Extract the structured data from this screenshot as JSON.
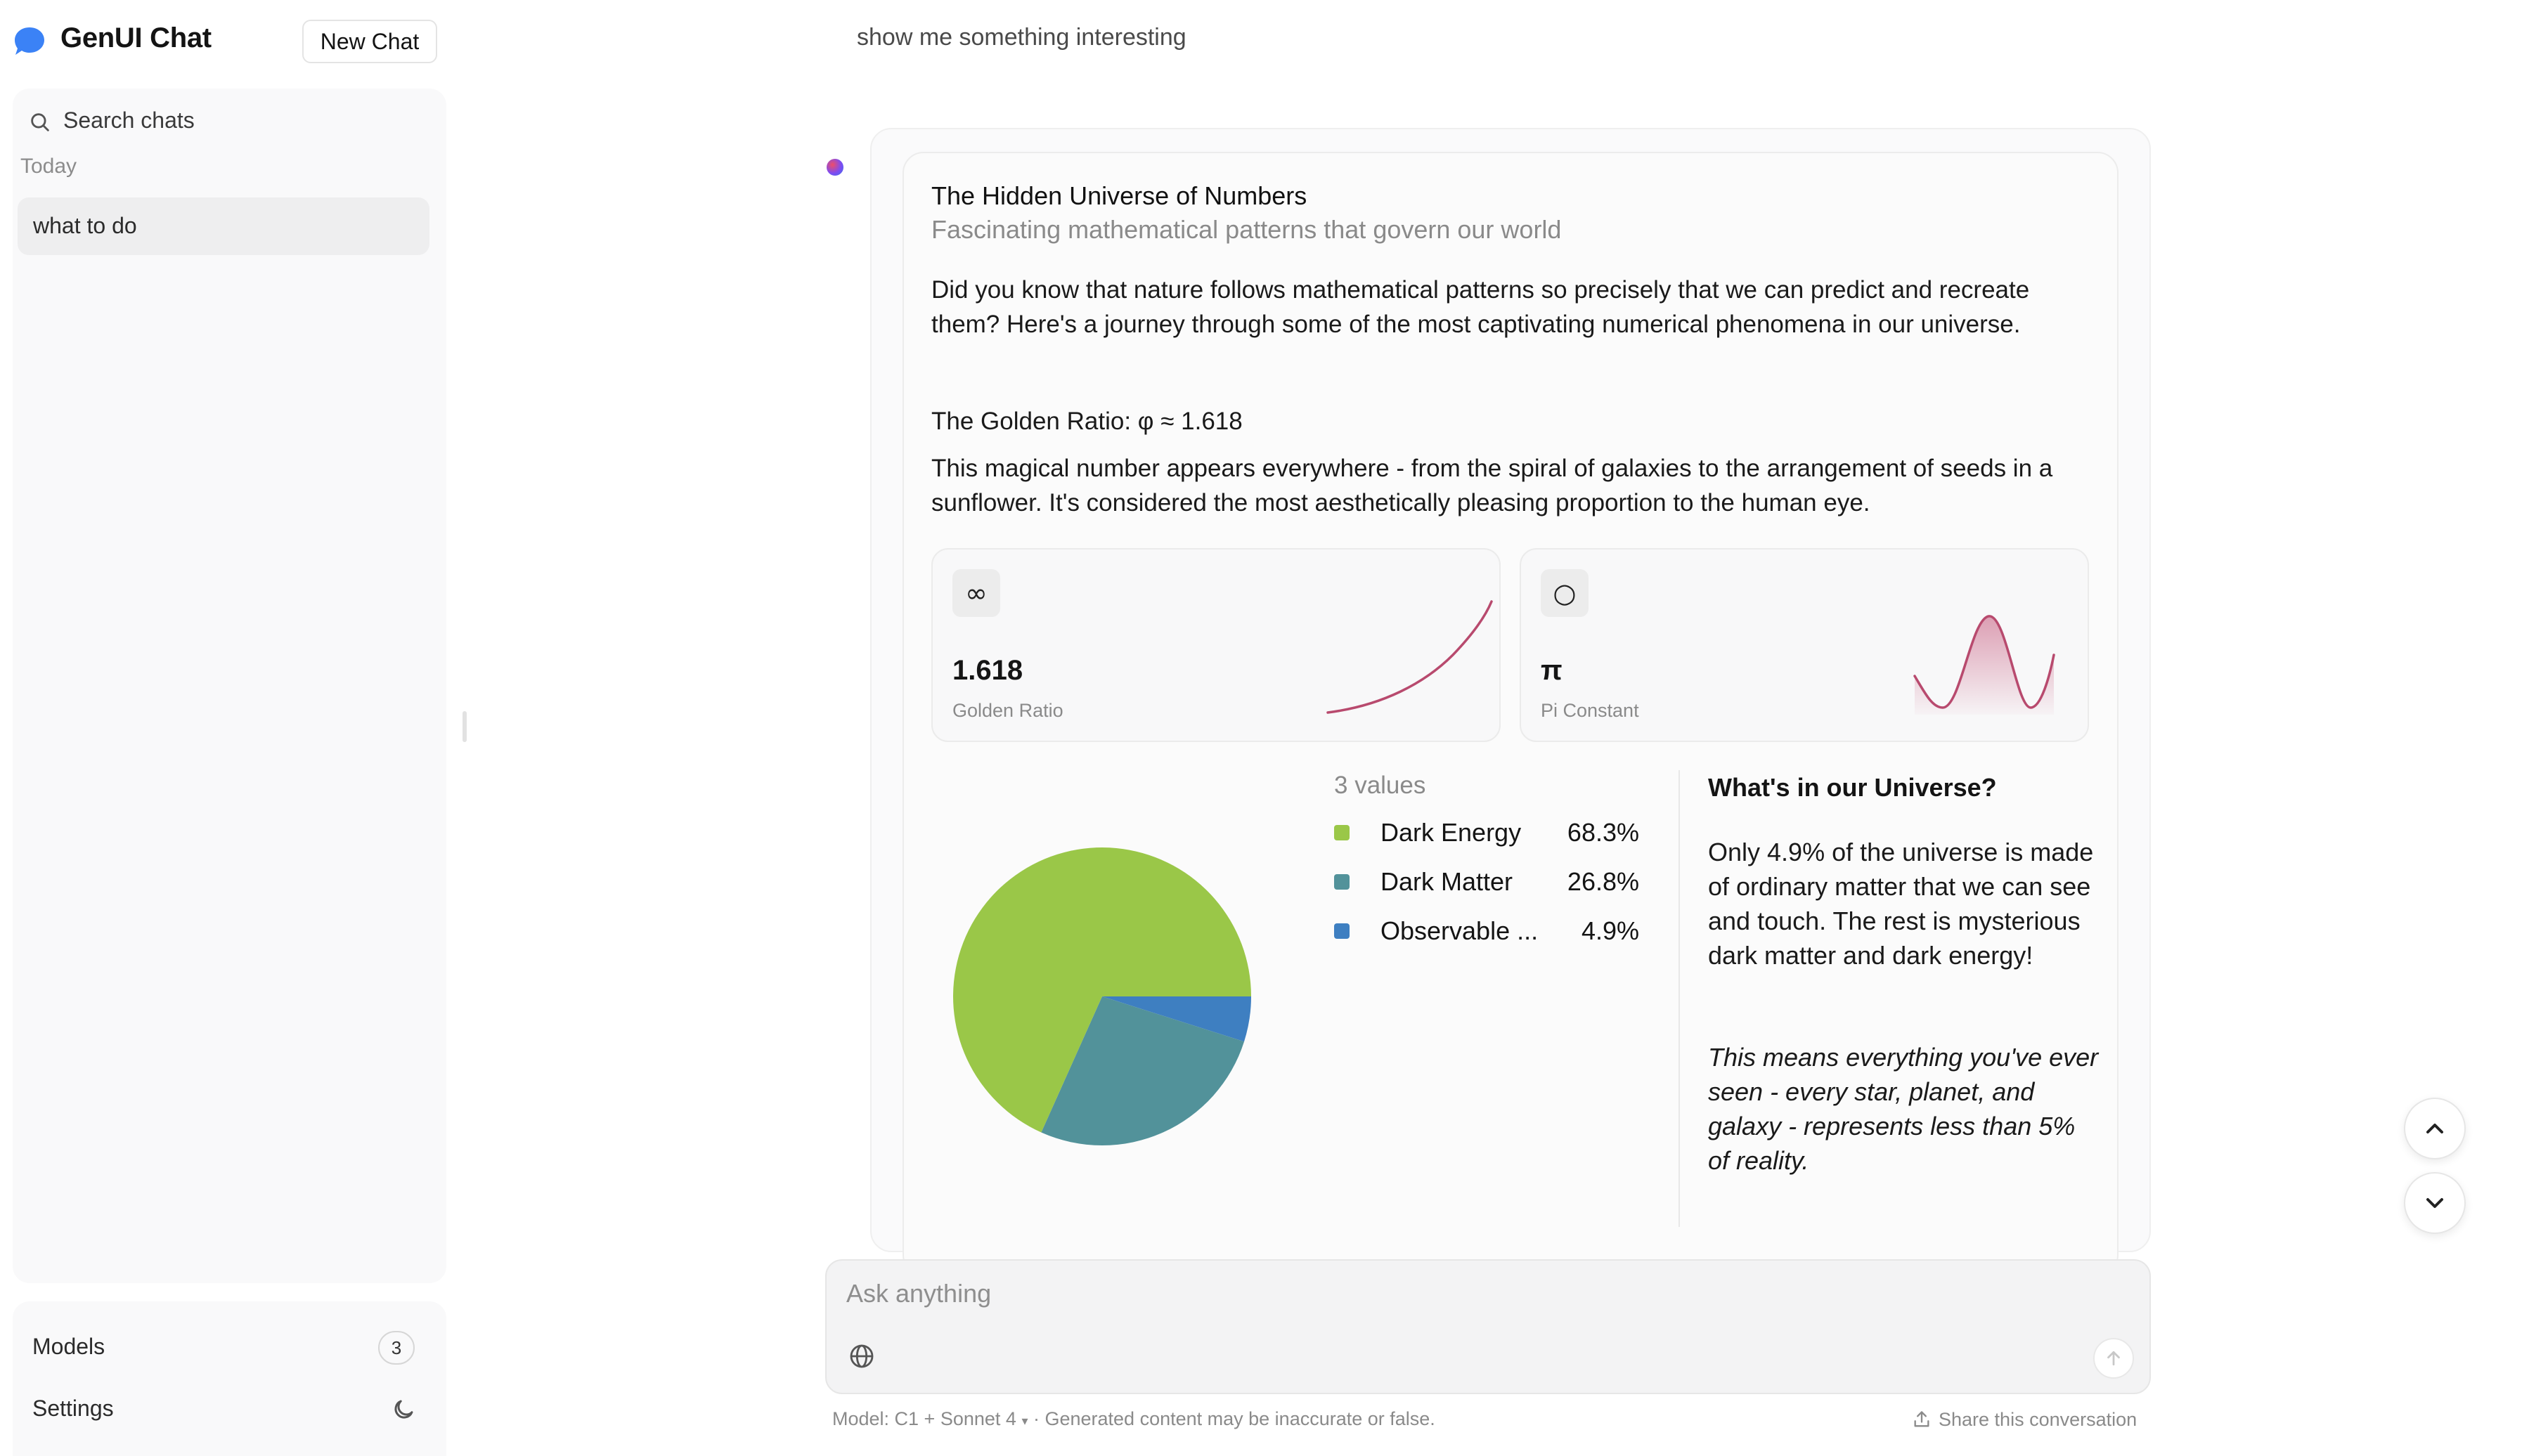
{
  "app": {
    "title": "GenUI Chat",
    "new_chat_label": "New Chat"
  },
  "sidebar": {
    "search_label": "Search chats",
    "section_today": "Today",
    "chats": [
      {
        "label": "what to do"
      }
    ],
    "models_label": "Models",
    "models_count": "3",
    "settings_label": "Settings"
  },
  "conversation": {
    "user_message": "show me something interesting",
    "card": {
      "title": "The Hidden Universe of Numbers",
      "subtitle": "Fascinating mathematical patterns that govern our world",
      "intro": "Did you know that nature follows mathematical patterns so precisely that we can predict and recreate them? Here's a journey through some of the most captivating numerical phenomena in our universe.",
      "golden_heading": "The Golden Ratio: φ ≈ 1.618",
      "golden_text": "This magical number appears everywhere - from the spiral of galaxies to the arrangement of seeds in a sunflower. It's considered the most aesthetically pleasing proportion to the human eye.",
      "stats": [
        {
          "icon": "∞",
          "icon_name": "infinity-icon",
          "value": "1.618",
          "label": "Golden Ratio"
        },
        {
          "icon": "○",
          "icon_name": "circle-icon",
          "value": "π",
          "label": "Pi Constant"
        }
      ],
      "universe_heading": "What's in our Universe?",
      "universe_text": "Only 4.9% of the universe is made of ordinary matter that we can see and touch. The rest is mysterious dark matter and dark energy!",
      "universe_italic": "This means everything you've ever seen - every star, planet, and galaxy - represents less than 5% of reality."
    }
  },
  "chart_data": {
    "type": "pie",
    "legend_title": "3 values",
    "categories": [
      "Dark Energy",
      "Dark Matter",
      "Observable ..."
    ],
    "values": [
      68.3,
      26.8,
      4.9
    ],
    "value_labels": [
      "68.3%",
      "26.8%",
      "4.9%"
    ],
    "colors": [
      "#9ac748",
      "#52929a",
      "#3e7fc1"
    ]
  },
  "composer": {
    "placeholder": "Ask anything",
    "footer_model": "Model: C1 + Sonnet 4",
    "footer_note": " · Generated content may be inaccurate or false.",
    "share_label": "Share this conversation"
  },
  "colors": {
    "accent_blue": "#3b82f6",
    "spark_line": "#b84a6e"
  }
}
